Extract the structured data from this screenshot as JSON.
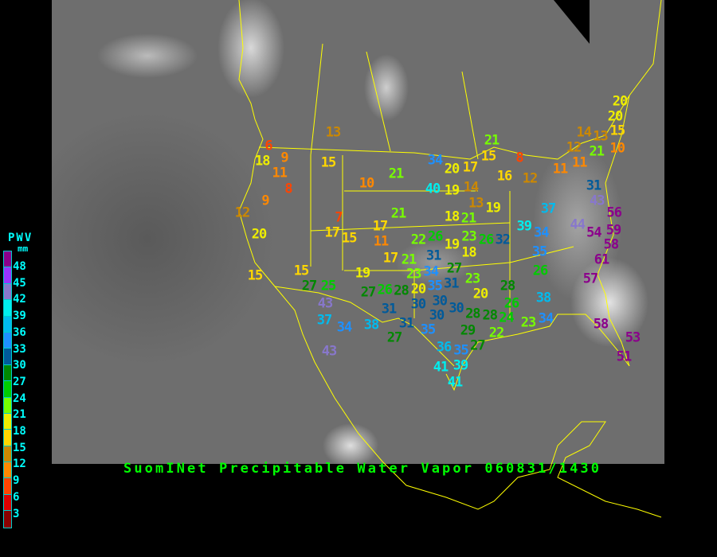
{
  "title": "SuomINet Precipitable Water Vapor 060831/1430",
  "legend": {
    "title": "PWV",
    "unit": "mm",
    "labels": [
      "48",
      "45",
      "42",
      "39",
      "36",
      "33",
      "30",
      "27",
      "24",
      "21",
      "18",
      "15",
      "12",
      "9",
      "6",
      "3"
    ],
    "colors": [
      "#8b008b",
      "#9933ff",
      "#8877cc",
      "#00eeee",
      "#00bbee",
      "#1e90ff",
      "#005a9a",
      "#008800",
      "#00cc00",
      "#77ff00",
      "#eeee00",
      "#ffd700",
      "#cc8800",
      "#ff8800",
      "#ff4400",
      "#dd0000",
      "#880000"
    ]
  },
  "map": {
    "boundary_color": "#ffff00"
  },
  "stations": [
    13,
    6,
    18,
    9,
    11,
    15,
    8,
    10,
    21,
    34,
    20,
    17,
    21,
    15,
    8,
    16,
    12,
    40,
    19,
    14,
    9,
    12,
    7,
    17,
    15,
    17,
    11,
    21,
    18,
    21,
    13,
    19,
    20,
    15,
    15,
    27,
    25,
    19,
    17,
    43,
    37,
    34,
    38,
    31,
    27,
    28,
    27,
    43,
    22,
    26,
    23,
    19,
    18,
    26,
    32,
    31,
    21,
    27,
    23,
    34,
    35,
    31,
    23,
    20,
    26,
    20,
    30,
    30,
    30,
    28,
    28,
    26,
    28,
    24,
    22,
    23,
    34,
    38,
    26,
    35,
    34,
    39,
    37,
    31,
    35,
    29,
    27,
    36,
    35,
    39,
    41,
    41,
    30,
    20,
    20,
    15,
    14,
    13,
    10,
    12,
    11,
    21,
    11,
    31,
    43,
    56,
    44,
    54,
    59,
    58,
    61,
    57,
    58,
    53,
    51
  ]
}
